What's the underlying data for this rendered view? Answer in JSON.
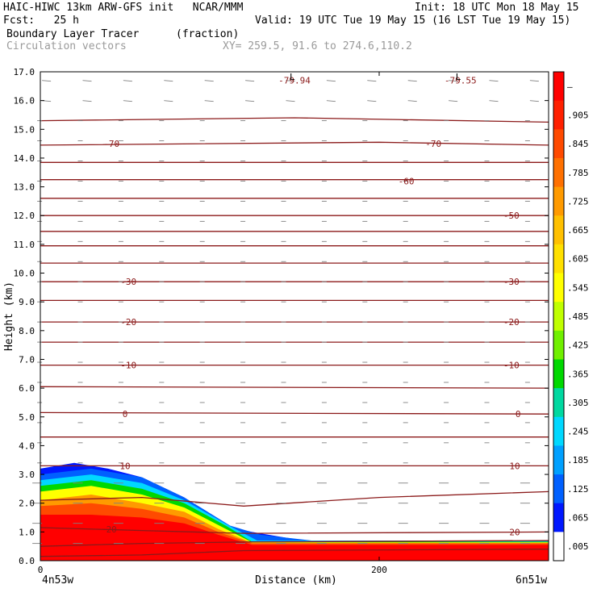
{
  "header": {
    "line1_left": "HAIC-HIWC 13km ARW-GFS init   NCAR/MMM",
    "line1_right": "Init: 18 UTC Mon 18 May 15",
    "line2_left": "Fcst:   25 h",
    "line2_right": "Valid: 19 UTC Tue 19 May 15 (16 LST Tue 19 May 15)",
    "field_name": "Boundary Layer Tracer",
    "field_units": "(fraction)",
    "overlay_name": "Circulation vectors",
    "xy_range": "XY= 259.5, 91.6 to 274.6,110.2"
  },
  "colors": {
    "contour": "#8b1a1a",
    "vector": "#808080"
  },
  "chart_data": {
    "type": "heatmap",
    "title": "Boundary Layer Tracer",
    "xlabel": "Distance (km)",
    "ylabel": "Height (km)",
    "xlim": [
      0,
      300
    ],
    "ylim": [
      0,
      17
    ],
    "x_ticks": [
      "0",
      "200"
    ],
    "x_tick_values": [
      0,
      200
    ],
    "y_ticks": [
      "0.0",
      "1.0",
      "2.0",
      "3.0",
      "4.0",
      "5.0",
      "6.0",
      "7.0",
      "8.0",
      "9.0",
      "10.0",
      "11.0",
      "12.0",
      "13.0",
      "14.0",
      "15.0",
      "16.0",
      "17.0"
    ],
    "x_endpoint_labels": [
      "4n53w",
      "6n51w"
    ],
    "colorbar": {
      "labels": [
        "–",
        ".905",
        ".845",
        ".785",
        ".725",
        ".665",
        ".605",
        ".545",
        ".485",
        ".425",
        ".365",
        ".305",
        ".245",
        ".185",
        ".125",
        ".065",
        ".005"
      ],
      "colors": [
        "#ff0000",
        "#ff2000",
        "#ff4a00",
        "#ff7000",
        "#ff9a00",
        "#ffc000",
        "#ffe000",
        "#ffff00",
        "#c0ff00",
        "#70f000",
        "#00d800",
        "#00d8a0",
        "#00d8ff",
        "#00a0ff",
        "#0060ff",
        "#0018ff",
        "#ffffff"
      ]
    },
    "tracer_top_profile": [
      [
        0,
        3.2
      ],
      [
        20,
        3.4
      ],
      [
        40,
        3.2
      ],
      [
        60,
        2.9
      ],
      [
        85,
        2.2
      ],
      [
        110,
        1.2
      ],
      [
        125,
        1.0
      ],
      [
        145,
        0.8
      ],
      [
        170,
        0.6
      ],
      [
        300,
        0.7
      ]
    ],
    "tracer_bands": [
      {
        "value": 0.95,
        "profile": [
          [
            0,
            1.6
          ],
          [
            30,
            1.6
          ],
          [
            60,
            1.5
          ],
          [
            85,
            1.3
          ],
          [
            105,
            0.9
          ],
          [
            125,
            0.55
          ],
          [
            300,
            0.55
          ]
        ]
      },
      {
        "value": 0.845,
        "profile": [
          [
            0,
            1.9
          ],
          [
            30,
            2.0
          ],
          [
            60,
            1.8
          ],
          [
            85,
            1.5
          ],
          [
            105,
            1.0
          ],
          [
            125,
            0.6
          ],
          [
            300,
            0.6
          ]
        ]
      },
      {
        "value": 0.725,
        "profile": [
          [
            0,
            2.1
          ],
          [
            30,
            2.3
          ],
          [
            60,
            2.0
          ],
          [
            85,
            1.7
          ],
          [
            105,
            1.1
          ],
          [
            125,
            0.62
          ],
          [
            300,
            0.62
          ]
        ]
      },
      {
        "value": 0.545,
        "profile": [
          [
            0,
            2.4
          ],
          [
            30,
            2.6
          ],
          [
            60,
            2.3
          ],
          [
            85,
            1.85
          ],
          [
            108,
            1.15
          ],
          [
            125,
            0.64
          ],
          [
            300,
            0.64
          ]
        ]
      },
      {
        "value": 0.365,
        "profile": [
          [
            0,
            2.6
          ],
          [
            30,
            2.8
          ],
          [
            60,
            2.5
          ],
          [
            85,
            2.0
          ],
          [
            110,
            1.2
          ],
          [
            125,
            0.66
          ],
          [
            300,
            0.66
          ]
        ]
      },
      {
        "value": 0.245,
        "profile": [
          [
            0,
            2.8
          ],
          [
            30,
            3.0
          ],
          [
            60,
            2.7
          ],
          [
            85,
            2.1
          ],
          [
            112,
            1.2
          ],
          [
            128,
            0.7
          ],
          [
            300,
            0.68
          ]
        ]
      },
      {
        "value": 0.125,
        "profile": [
          [
            0,
            3.0
          ],
          [
            30,
            3.2
          ],
          [
            60,
            2.9
          ],
          [
            85,
            2.2
          ],
          [
            112,
            1.22
          ],
          [
            130,
            0.9
          ],
          [
            160,
            0.7
          ],
          [
            300,
            0.7
          ]
        ]
      }
    ],
    "isotherms": [
      {
        "label": "-79.94",
        "x": 150,
        "y": 16.7
      },
      {
        "label": "-79.55",
        "x": 248,
        "y": 16.7
      },
      {
        "label": "-70",
        "x": 42,
        "y": 14.5
      },
      {
        "label": "-70",
        "x": 232,
        "y": 14.5
      },
      {
        "label": "-60",
        "x": 216,
        "y": 13.2
      },
      {
        "label": "-50",
        "x": 278,
        "y": 12.0
      },
      {
        "label": "-30",
        "x": 52,
        "y": 9.7
      },
      {
        "label": "-30",
        "x": 278,
        "y": 9.7
      },
      {
        "label": "-20",
        "x": 52,
        "y": 8.3
      },
      {
        "label": "-20",
        "x": 278,
        "y": 8.3
      },
      {
        "label": "-10",
        "x": 52,
        "y": 6.8
      },
      {
        "label": "-10",
        "x": 278,
        "y": 6.8
      },
      {
        "label": "0",
        "x": 50,
        "y": 5.1
      },
      {
        "label": "0",
        "x": 282,
        "y": 5.1
      },
      {
        "label": "10",
        "x": 50,
        "y": 3.3
      },
      {
        "label": "10",
        "x": 280,
        "y": 3.3
      },
      {
        "label": "20",
        "x": 42,
        "y": 1.1
      },
      {
        "label": "20",
        "x": 280,
        "y": 1.0
      }
    ],
    "low_markers": [
      {
        "label": "L",
        "x": 150
      },
      {
        "label": "L",
        "x": 248
      }
    ],
    "contour_levels": [
      [
        [
          0,
          0.15
        ],
        [
          60,
          0.2
        ],
        [
          120,
          0.35
        ],
        [
          300,
          0.4
        ]
      ],
      [
        [
          0,
          0.5
        ],
        [
          60,
          0.6
        ],
        [
          120,
          0.65
        ],
        [
          300,
          0.7
        ]
      ],
      [
        [
          0,
          1.15
        ],
        [
          60,
          1.05
        ],
        [
          120,
          0.95
        ],
        [
          300,
          1.0
        ]
      ],
      [
        [
          0,
          2.1
        ],
        [
          60,
          2.2
        ],
        [
          120,
          1.9
        ],
        [
          200,
          2.2
        ],
        [
          300,
          2.4
        ]
      ],
      [
        [
          0,
          3.3
        ],
        [
          150,
          3.3
        ],
        [
          300,
          3.3
        ]
      ],
      [
        [
          0,
          4.3
        ],
        [
          300,
          4.3
        ]
      ],
      [
        [
          0,
          5.15
        ],
        [
          300,
          5.1
        ]
      ],
      [
        [
          0,
          6.05
        ],
        [
          300,
          6.0
        ]
      ],
      [
        [
          0,
          6.8
        ],
        [
          300,
          6.8
        ]
      ],
      [
        [
          0,
          7.6
        ],
        [
          300,
          7.6
        ]
      ],
      [
        [
          0,
          8.3
        ],
        [
          300,
          8.3
        ]
      ],
      [
        [
          0,
          9.05
        ],
        [
          300,
          9.05
        ]
      ],
      [
        [
          0,
          9.7
        ],
        [
          300,
          9.7
        ]
      ],
      [
        [
          0,
          10.35
        ],
        [
          300,
          10.35
        ]
      ],
      [
        [
          0,
          10.95
        ],
        [
          300,
          10.95
        ]
      ],
      [
        [
          0,
          11.45
        ],
        [
          300,
          11.45
        ]
      ],
      [
        [
          0,
          12.0
        ],
        [
          300,
          12.0
        ]
      ],
      [
        [
          0,
          12.6
        ],
        [
          300,
          12.6
        ]
      ],
      [
        [
          0,
          13.25
        ],
        [
          300,
          13.25
        ]
      ],
      [
        [
          0,
          13.85
        ],
        [
          300,
          13.85
        ]
      ],
      [
        [
          0,
          14.45
        ],
        [
          200,
          14.55
        ],
        [
          300,
          14.45
        ]
      ],
      [
        [
          0,
          15.3
        ],
        [
          150,
          15.4
        ],
        [
          300,
          15.25
        ]
      ]
    ]
  }
}
